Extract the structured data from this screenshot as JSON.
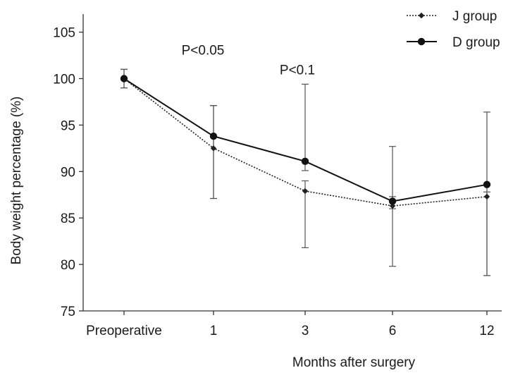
{
  "chart_data": {
    "type": "line",
    "title": "",
    "xlabel": "Months after surgery",
    "ylabel": "Body weight percentage (%)",
    "categories": [
      "Preoperative",
      "1",
      "3",
      "6",
      "12"
    ],
    "ylim": [
      75,
      107
    ],
    "yticks": [
      75,
      80,
      85,
      90,
      95,
      100,
      105
    ],
    "grid": false,
    "legend_position": "top-right",
    "series": [
      {
        "name": "J group",
        "style": "dotted",
        "marker": "diamond",
        "color": "#222222",
        "values": [
          100.0,
          92.5,
          87.9,
          86.3,
          87.3
        ],
        "error_low": [
          99.0,
          87.1,
          81.8,
          79.8,
          78.8
        ],
        "error_high": [
          101.0,
          97.1,
          89.0,
          87.3,
          87.8
        ]
      },
      {
        "name": "D group",
        "style": "solid",
        "marker": "circle",
        "color": "#111111",
        "values": [
          100.0,
          93.8,
          91.1,
          86.8,
          88.6
        ],
        "error_low": [
          99.0,
          87.1,
          90.1,
          86.0,
          78.8
        ],
        "error_high": [
          101.0,
          97.1,
          99.4,
          92.7,
          96.4
        ]
      }
    ],
    "annotations": [
      {
        "text": "P<0.05",
        "category_index": 1,
        "y": 103.1
      },
      {
        "text": "P<0.1",
        "category_index": 2,
        "y": 101.0
      }
    ]
  }
}
